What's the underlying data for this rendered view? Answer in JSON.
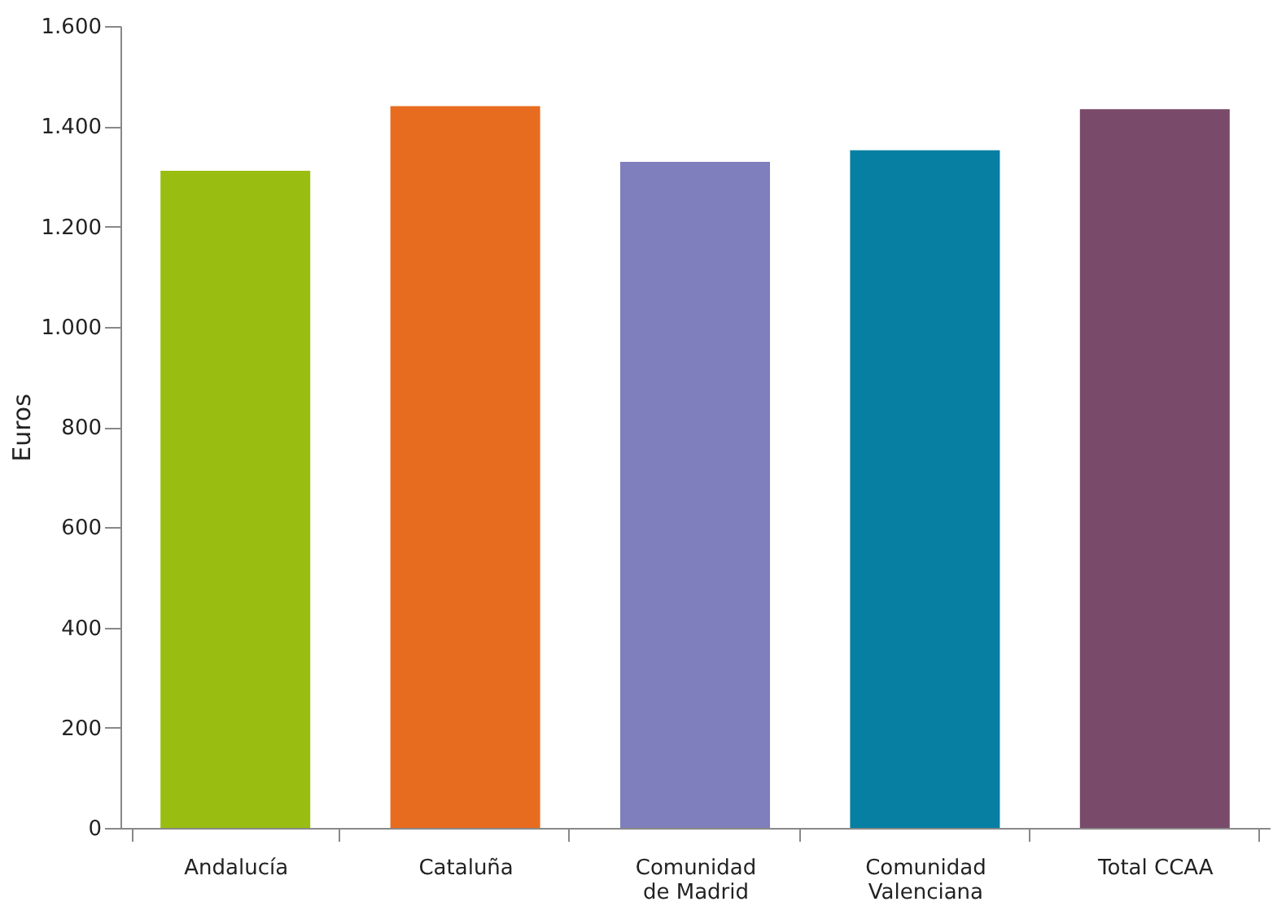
{
  "chart_data": {
    "type": "bar",
    "ylabel": "Euros",
    "categories": [
      "Andalucía",
      "Cataluña",
      "Comunidad de Madrid",
      "Comunidad Valenciana",
      "Total CCAA"
    ],
    "values": [
      1311,
      1440,
      1329,
      1352,
      1434
    ],
    "colors": [
      "#99bd10",
      "#e86c1f",
      "#7f7fbd",
      "#067fa2",
      "#794a69"
    ],
    "ylim": [
      0,
      1600
    ],
    "yticks": [
      {
        "value": 0,
        "label": "0"
      },
      {
        "value": 200,
        "label": "200"
      },
      {
        "value": 400,
        "label": "400"
      },
      {
        "value": 600,
        "label": "600"
      },
      {
        "value": 800,
        "label": "800"
      },
      {
        "value": 1000,
        "label": "1.000"
      },
      {
        "value": 1200,
        "label": "1.200"
      },
      {
        "value": 1400,
        "label": "1.400"
      },
      {
        "value": 1600,
        "label": "1.600"
      }
    ],
    "grid": false
  }
}
